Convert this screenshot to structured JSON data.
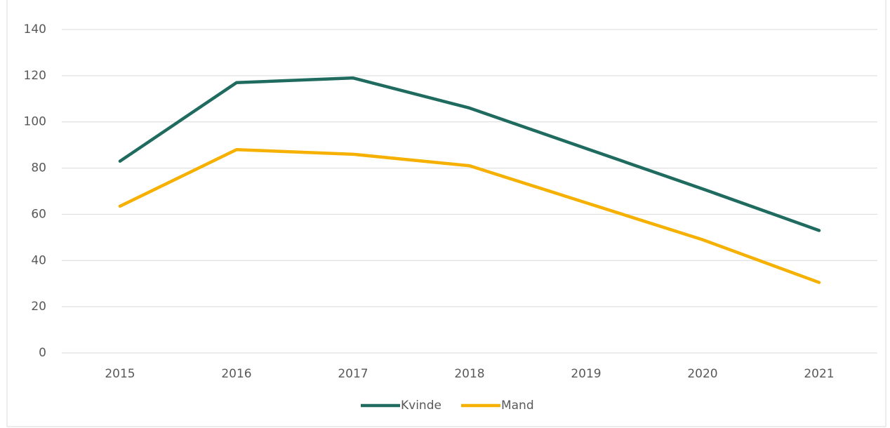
{
  "chart_data": {
    "type": "line",
    "categories": [
      "2015",
      "2016",
      "2017",
      "2018",
      "2019",
      "2020",
      "2021"
    ],
    "series": [
      {
        "name": "Kvinde",
        "color": "#1f6b5f",
        "values": [
          83,
          117,
          119,
          106,
          88.5,
          71,
          53
        ]
      },
      {
        "name": "Mand",
        "color": "#f5b000",
        "values": [
          63.5,
          88,
          86,
          81,
          65,
          49,
          30.5
        ]
      }
    ],
    "ylim": [
      0,
      140
    ],
    "yticks": [
      0,
      20,
      40,
      60,
      80,
      100,
      120,
      140
    ],
    "grid": true,
    "legend": "bottom"
  }
}
